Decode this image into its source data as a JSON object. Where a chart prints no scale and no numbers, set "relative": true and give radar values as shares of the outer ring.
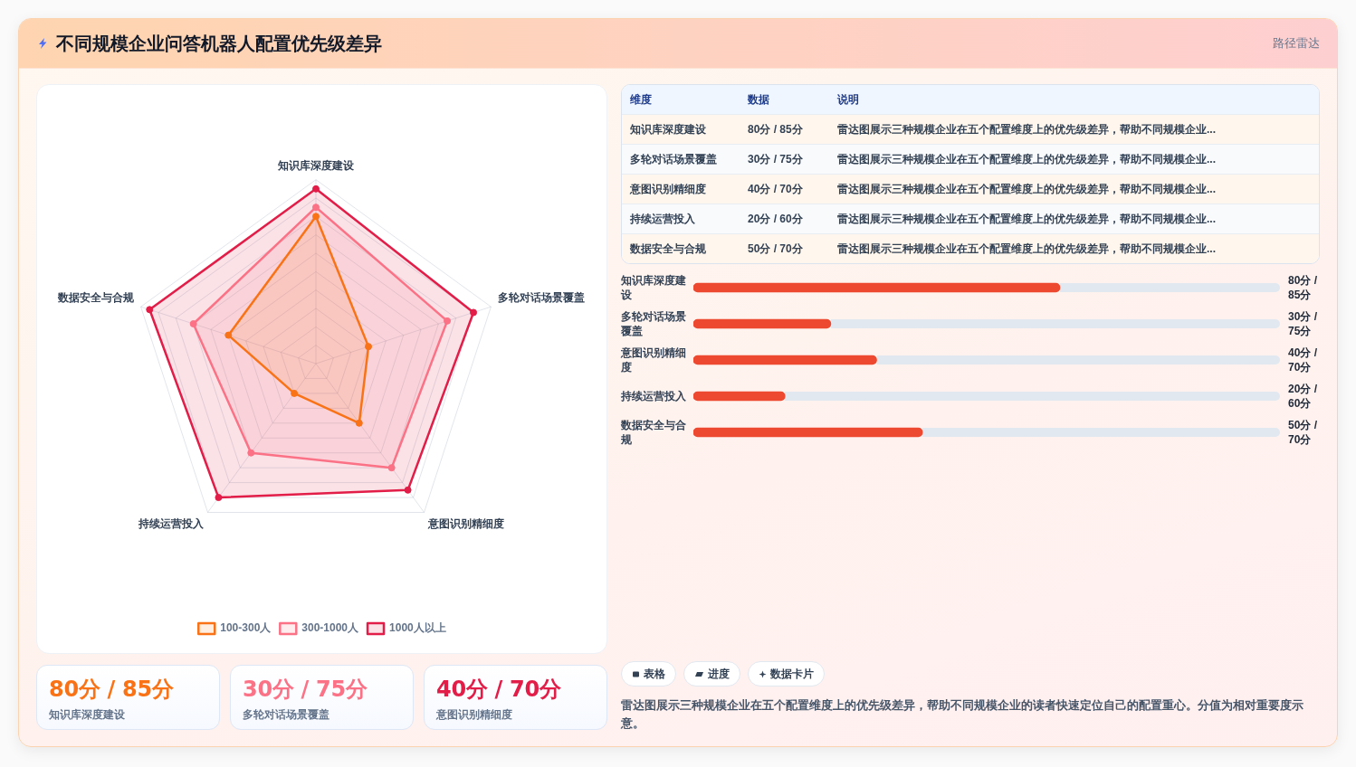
{
  "chart_data": [
    {
      "type": "radar",
      "title": "不同规模企业问答机器人配置优先级差异",
      "annotations": [
        "路径雷达"
      ],
      "categories": [
        "知识库深度建设",
        "多轮对话场景覆盖",
        "意图识别精细度",
        "持续运营投入",
        "数据安全与合规"
      ],
      "relative": true,
      "series": [
        {
          "name": "100-300人",
          "color": "#f97316",
          "values": [
            0.8,
            0.3,
            0.4,
            0.2,
            0.5
          ]
        },
        {
          "name": "300-1000人",
          "color": "#fb7185",
          "values": [
            0.85,
            0.75,
            0.7,
            0.6,
            0.7
          ]
        },
        {
          "name": "1000人以上",
          "color": "#e11d48",
          "values": [
            0.95,
            0.9,
            0.85,
            0.9,
            0.95
          ]
        }
      ],
      "grid": true,
      "legend": "bottom",
      "marker": "circle"
    },
    {
      "type": "other",
      "categories": [
        "知识库深度建设",
        "多轮对话场景覆盖",
        "意图识别精细度",
        "持续运营投入",
        "数据安全与合规"
      ],
      "value_labels": [
        "80分 / 85分",
        "30分 / 75分",
        "40分 / 70分",
        "20分 / 60分",
        "50分 / 70分"
      ],
      "annotations": [
        "维度",
        "数据",
        "说明",
        "雷达图展示三种规模企业在五个配置维度上的优先级差异，帮助不同规模企业...",
        "雷达图展示三种规模企业在五个配置维度上的优先级差异，帮助不同规模企业...",
        "雷达图展示三种规模企业在五个配置维度上的优先级差异，帮助不同规模企业...",
        "雷达图展示三种规模企业在五个配置维度上的优先级差异，帮助不同规模企业...",
        "雷达图展示三种规模企业在五个配置维度上的优先级差异，帮助不同规模企业..."
      ]
    },
    {
      "type": "bar",
      "orientation": "horizontal",
      "categories": [
        "知识库深度建设",
        "多轮对话场景覆盖",
        "意图识别精细度",
        "持续运营投入",
        "数据安全与合规"
      ],
      "values": [
        80,
        30,
        40,
        20,
        50
      ],
      "value_labels": [
        "80分 / 85分",
        "30分 / 75分",
        "40分 / 70分",
        "20分 / 60分",
        "50分 / 70分"
      ],
      "color": "#ed4830",
      "xlim": [
        0,
        128
      ],
      "tick_labels": "y"
    },
    {
      "type": "other",
      "categories": [
        "知识库深度建设",
        "多轮对话场景覆盖",
        "意图识别精细度"
      ],
      "value_labels": [
        "80分 / 85分",
        "30分 / 75分",
        "40分 / 70分"
      ]
    },
    {
      "type": "other",
      "annotations": [
        "表格",
        "进度",
        "数据卡片",
        "雷达图展示三种规模企业在五个配置维度上的优先级差异，帮助不同规模企业的读者快速定位自己的配置重心。分值为相对重要度示意。"
      ]
    }
  ]
}
